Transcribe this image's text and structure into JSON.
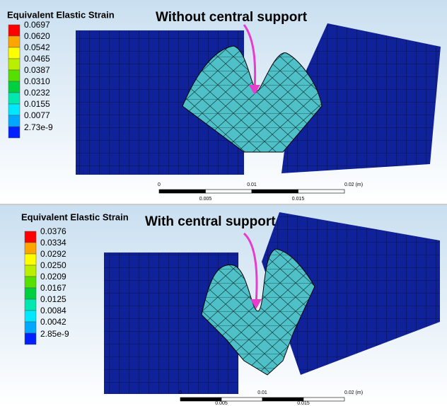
{
  "panels": [
    {
      "legend": {
        "title": "Equivalent Elastic Strain",
        "labels": [
          "0.0697",
          "0.0620",
          "0.0542",
          "0.0465",
          "0.0387",
          "0.0310",
          "0.0232",
          "0.0155",
          "0.0077",
          "2.73e-9"
        ]
      },
      "annotation": "Without central support",
      "scale_bar": {
        "top_labels": [
          "0",
          "0.01",
          "0.02 (m)"
        ],
        "bottom_labels": [
          "0.005",
          "0.015"
        ]
      }
    },
    {
      "legend": {
        "title": "Equivalent Elastic Strain",
        "labels": [
          "0.0376",
          "0.0334",
          "0.0292",
          "0.0250",
          "0.0209",
          "0.0167",
          "0.0125",
          "0.0084",
          "0.0042",
          "2.85e-9"
        ]
      },
      "annotation": "With central support",
      "scale_bar": {
        "top_labels": [
          "0",
          "0.01",
          "0.02 (m)"
        ],
        "bottom_labels": [
          "0.005",
          "0.015"
        ]
      }
    }
  ]
}
